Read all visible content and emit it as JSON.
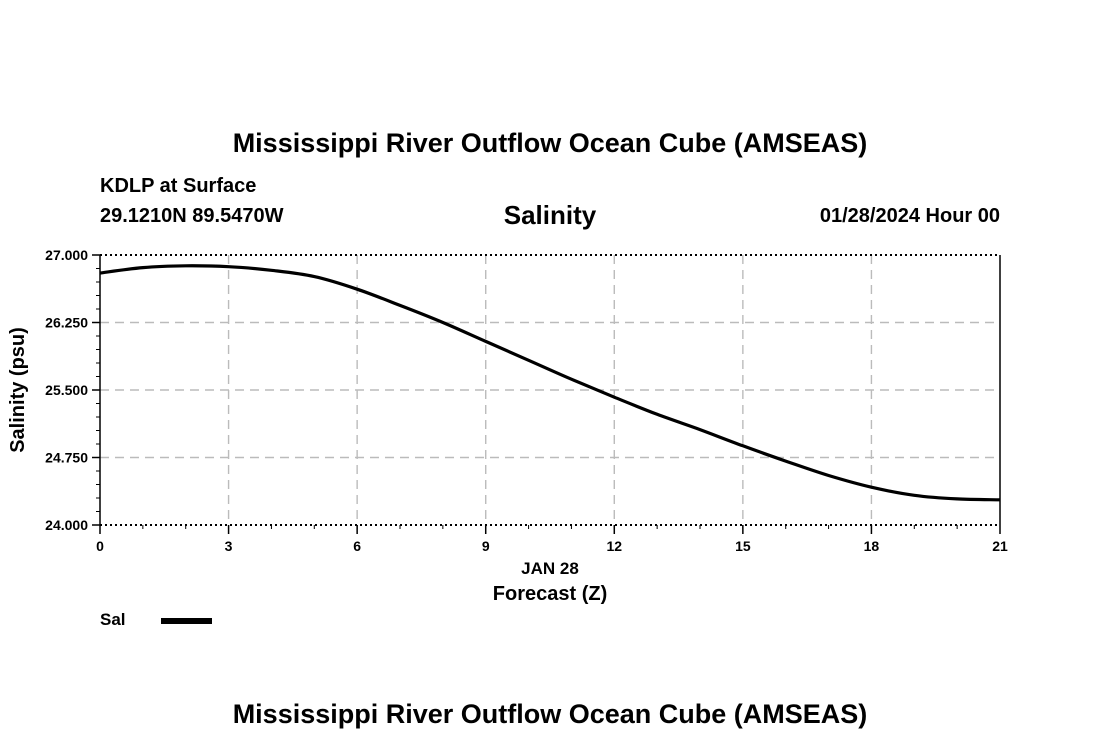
{
  "header": {
    "title": "Mississippi River Outflow Ocean Cube (AMSEAS)",
    "station": "KDLP at Surface",
    "coords": "29.1210N  89.5470W",
    "parameter": "Salinity",
    "date": "01/28/2024 Hour 00"
  },
  "footer": {
    "title": "Mississippi River Outflow Ocean Cube (AMSEAS)"
  },
  "chart_data": {
    "type": "line",
    "xlabel": "Forecast (Z)",
    "xsublabel": "JAN 28",
    "ylabel": "Salinity (psu)",
    "xlim": [
      0,
      21
    ],
    "ylim": [
      24.0,
      27.0
    ],
    "x_ticks": [
      0,
      3,
      6,
      9,
      12,
      15,
      18,
      21
    ],
    "x_tick_labels": [
      "0",
      "3",
      "6",
      "9",
      "12",
      "15",
      "18",
      "21"
    ],
    "y_ticks": [
      24.0,
      24.75,
      25.5,
      26.25,
      27.0
    ],
    "y_tick_labels": [
      "24.000",
      "24.750",
      "25.500",
      "26.250",
      "27.000"
    ],
    "grid": true,
    "legend_position": "bottom-left",
    "series": [
      {
        "name": "Sal",
        "color": "#000000",
        "x": [
          0,
          1,
          2,
          3,
          4,
          5,
          6,
          7,
          8,
          9,
          10,
          11,
          12,
          13,
          14,
          15,
          16,
          17,
          18,
          19,
          20,
          21
        ],
        "values": [
          26.8,
          26.86,
          26.88,
          26.87,
          26.83,
          26.76,
          26.62,
          26.44,
          26.25,
          26.04,
          25.83,
          25.62,
          25.42,
          25.23,
          25.06,
          24.88,
          24.71,
          24.55,
          24.42,
          24.33,
          24.29,
          24.28
        ]
      }
    ]
  }
}
